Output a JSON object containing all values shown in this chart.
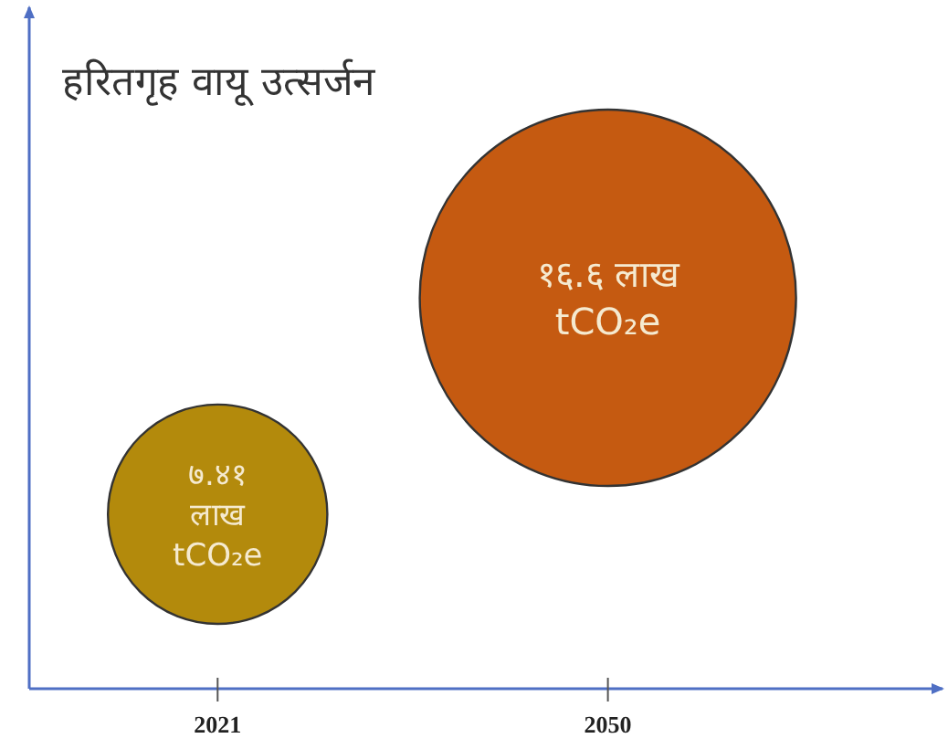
{
  "chart_data": {
    "type": "bubble",
    "title": "हरितगृह वायू उत्सर्जन",
    "x": [
      2021,
      2050
    ],
    "values": [
      7.41,
      16.6
    ],
    "sizes": [
      0.34,
      1
    ],
    "colors": [
      "#b38a0c",
      "#c55a11"
    ],
    "value_labels": [
      "७.४१\nलाख\ntCO₂e",
      "१६.६ लाख\ntCO₂e"
    ],
    "xlim": [
      2007,
      2075
    ],
    "xticks": [
      2021,
      2050
    ]
  }
}
